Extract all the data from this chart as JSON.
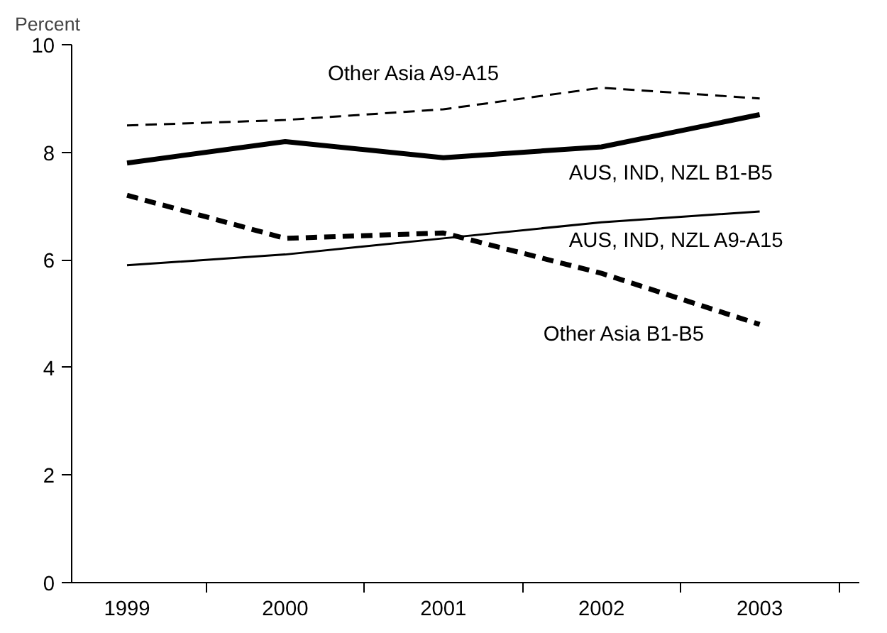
{
  "chart_data": {
    "type": "line",
    "ylabel": "Percent",
    "categories": [
      "1999",
      "2000",
      "2001",
      "2002",
      "2003"
    ],
    "ylim": [
      0,
      10
    ],
    "yticks": [
      0,
      2,
      4,
      6,
      8,
      10
    ],
    "grid": false,
    "marker": "none",
    "series": [
      {
        "name": "Other Asia A9-A15",
        "color": "#000000",
        "line_style": "dashed",
        "values": [
          8.5,
          8.6,
          8.8,
          9.2,
          9.0
        ]
      },
      {
        "name": "AUS, IND, NZL B1-B5",
        "color": "#000000",
        "line_style": "solid",
        "values": [
          7.8,
          8.2,
          7.9,
          8.1,
          8.7
        ]
      },
      {
        "name": "Other Asia B1-B5",
        "color": "#000000",
        "line_style": "dashed",
        "values": [
          7.2,
          6.4,
          6.5,
          5.75,
          4.8
        ]
      },
      {
        "name": "AUS, IND, NZL A9-A15",
        "color": "#000000",
        "line_style": "solid",
        "values": [
          5.9,
          6.1,
          6.4,
          6.7,
          6.9
        ]
      }
    ]
  }
}
